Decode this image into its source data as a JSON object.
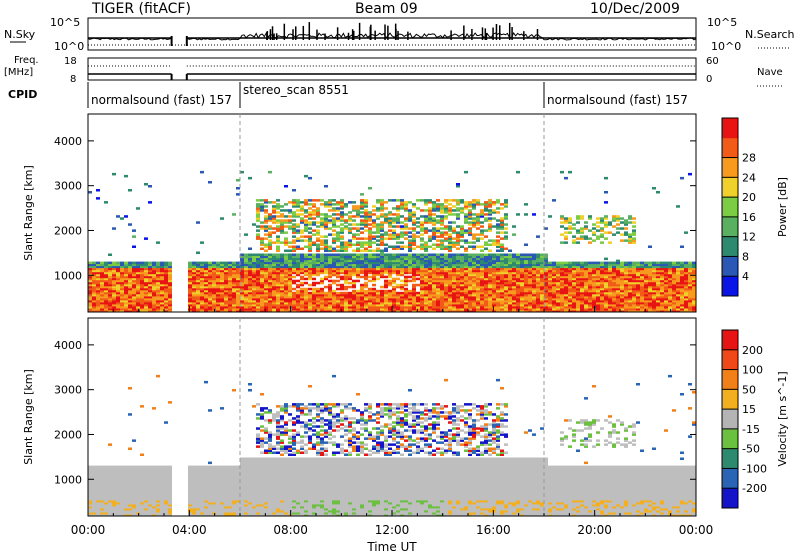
{
  "header": {
    "station": "TIGER (fitACF)",
    "beam": "Beam 09",
    "date": "10/Dec/2009"
  },
  "left_labels": {
    "nsky": "N.Sky",
    "nsky_ticks": [
      "10^5",
      "10^0"
    ],
    "freq": "Freq.",
    "freq_unit": "[MHz]",
    "freq_ticks": [
      "18",
      "8"
    ],
    "cpid": "CPID"
  },
  "right_labels": {
    "nsearch": "N.Search",
    "nsearch_ticks": [
      "10^5",
      "10^0"
    ],
    "nave": "Nave",
    "nave_ticks": [
      "60",
      "0"
    ]
  },
  "cpid_segments": [
    {
      "label": "normalsound (fast) 157",
      "start_hour": 0
    },
    {
      "label": "stereo_scan 8551",
      "start_hour": 6
    },
    {
      "label": "normalsound (fast) 157",
      "start_hour": 18
    }
  ],
  "x_axis": {
    "label": "Time UT",
    "ticks": [
      "00:00",
      "04:00",
      "08:00",
      "12:00",
      "16:00",
      "20:00",
      "00:00"
    ]
  },
  "chart_data": [
    {
      "type": "heatmap",
      "name": "power",
      "ylabel": "Slant Range [km]",
      "yticks": [
        "1000",
        "2000",
        "3000",
        "4000"
      ],
      "ylim": [
        180,
        4600
      ],
      "xlim_hours": [
        0,
        24
      ],
      "data_gap_hours": [
        3.3,
        3.9
      ],
      "colorbar": {
        "label": "Power [dB]",
        "ticks": [
          "4",
          "8",
          "12",
          "16",
          "20",
          "24",
          "28"
        ],
        "range": [
          0,
          32
        ],
        "colors": [
          "#0a14e6",
          "#2a58b4",
          "#2e8a6e",
          "#58b060",
          "#7ccc44",
          "#f0d02a",
          "#f79a1e",
          "#f25a18",
          "#e81414"
        ]
      }
    },
    {
      "type": "heatmap",
      "name": "velocity",
      "ylabel": "Slant Range [km]",
      "yticks": [
        "1000",
        "2000",
        "3000",
        "4000"
      ],
      "ylim": [
        180,
        4600
      ],
      "xlim_hours": [
        0,
        24
      ],
      "data_gap_hours": [
        3.3,
        3.9
      ],
      "colorbar": {
        "label": "Velocity [m s^-1]",
        "ticks": [
          "200",
          "100",
          "50",
          "15",
          "-15",
          "-50",
          "-100",
          "-200"
        ],
        "colors": [
          "#1414c8",
          "#2a64b4",
          "#2e8a6e",
          "#6cc040",
          "#b4b4b4",
          "#f2b020",
          "#f28018",
          "#f04818",
          "#e61414"
        ],
        "ground_scatter_color": "#bebebe"
      }
    }
  ]
}
